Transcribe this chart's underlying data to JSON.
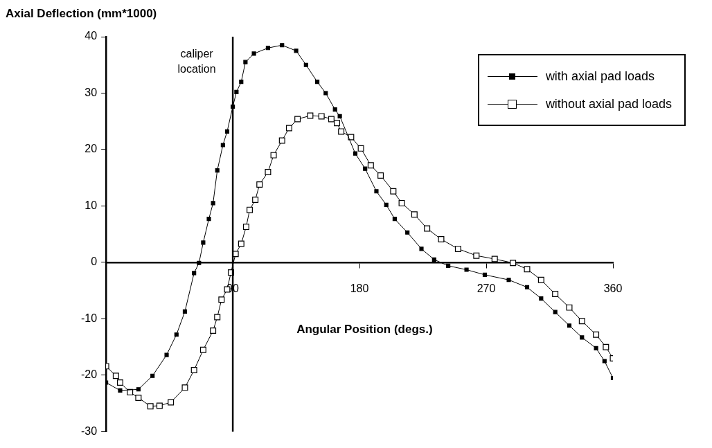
{
  "chart_data": {
    "type": "line",
    "ylabel": "Axial Deflection (mm*1000)",
    "xlabel": "Angular Position (degs.)",
    "xlim": [
      0,
      360
    ],
    "xticks": [
      90,
      180,
      270,
      360
    ],
    "ylim": [
      -30,
      40
    ],
    "yticks": [
      -30,
      -20,
      -10,
      0,
      10,
      20,
      30,
      40
    ],
    "grid": false,
    "legend": "top right",
    "marker": "square",
    "line_style": "solid",
    "ref_lines": [
      {
        "axis": "x",
        "value": 90,
        "label": "caliper location",
        "color": "#000000"
      }
    ],
    "series": [
      {
        "name": "with axial pad loads",
        "color": "#000000",
        "x": [
          0,
          10,
          23,
          33,
          43,
          50,
          56,
          62.5,
          66,
          69,
          73,
          76,
          79,
          83,
          86,
          90,
          92.6,
          96,
          99,
          105,
          115,
          125,
          135,
          142,
          150,
          156,
          162.6,
          166,
          177,
          184,
          192,
          199,
          205,
          214,
          224,
          233,
          243,
          256,
          269,
          286,
          299,
          309,
          319,
          329,
          338,
          348,
          354,
          360
        ],
        "values": [
          -21.3,
          -22.7,
          -22.5,
          -20.1,
          -16.4,
          -12.8,
          -8.7,
          -1.9,
          -0.1,
          3.5,
          7.7,
          10.5,
          16.3,
          20.8,
          23.2,
          27.6,
          30.2,
          32,
          35.5,
          37,
          38,
          38.5,
          37.5,
          35,
          32,
          30,
          27.1,
          25.9,
          19.3,
          16.6,
          12.6,
          10.2,
          7.7,
          5.3,
          2.4,
          0.5,
          -0.6,
          -1.3,
          -2.2,
          -3.1,
          -4.4,
          -6.4,
          -8.8,
          -11.2,
          -13.3,
          -15.2,
          -17.5,
          -20.5
        ]
      },
      {
        "name": "without axial pad loads",
        "color": "#000000",
        "x": [
          0,
          7,
          10,
          17,
          23,
          31.5,
          38,
          46,
          56,
          62.5,
          69,
          76,
          79,
          82,
          86,
          88.7,
          92,
          96,
          99.5,
          102,
          106,
          109,
          115,
          119,
          125,
          130,
          136,
          145,
          153,
          160,
          164,
          167,
          174,
          181,
          188,
          195,
          204,
          210,
          219,
          228,
          238,
          250,
          263,
          276,
          289,
          299,
          309,
          319,
          329,
          338,
          348,
          355,
          360
        ],
        "values": [
          -18.4,
          -20.1,
          -21.3,
          -23,
          -24,
          -25.5,
          -25.4,
          -24.8,
          -22.2,
          -19.1,
          -15.5,
          -12.1,
          -9.7,
          -6.6,
          -4.8,
          -1.8,
          1.5,
          3.3,
          6.3,
          9.3,
          11.1,
          13.8,
          16,
          19,
          21.6,
          23.8,
          25.4,
          26,
          25.9,
          25.4,
          24.7,
          23.2,
          22.2,
          20.2,
          17.2,
          15.4,
          12.6,
          10.5,
          8.5,
          6,
          4.1,
          2.4,
          1.2,
          0.6,
          -0.1,
          -1.2,
          -3.1,
          -5.6,
          -8,
          -10.4,
          -12.8,
          -15,
          -17
        ]
      }
    ]
  }
}
